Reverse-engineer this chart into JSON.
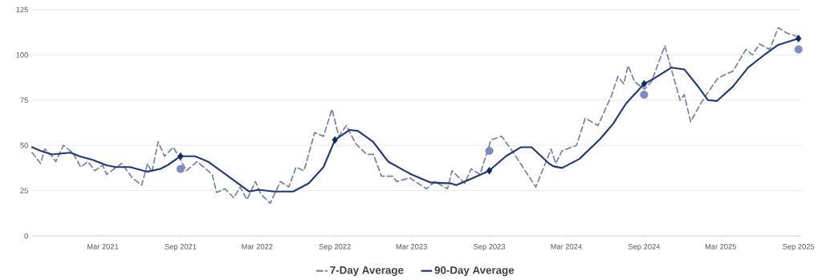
{
  "chart_data": {
    "type": "line",
    "xlim": [
      "2020-09-15",
      "2025-09-06"
    ],
    "xticks": [
      {
        "value": "2021-03-01",
        "label": "Mar 2021"
      },
      {
        "value": "2021-09-01",
        "label": "Sep 2021"
      },
      {
        "value": "2022-03-01",
        "label": "Mar 2022"
      },
      {
        "value": "2022-09-01",
        "label": "Sep 2022"
      },
      {
        "value": "2023-03-01",
        "label": "Mar 2023"
      },
      {
        "value": "2023-09-01",
        "label": "Sep 2023"
      },
      {
        "value": "2024-03-01",
        "label": "Mar 2024"
      },
      {
        "value": "2024-09-01",
        "label": "Sep 2024"
      },
      {
        "value": "2025-03-01",
        "label": "Mar 2025"
      },
      {
        "value": "2025-09-01",
        "label": "Sep 2025"
      }
    ],
    "ylim": [
      0,
      125
    ],
    "yticks": [
      0,
      25,
      50,
      75,
      100,
      125
    ],
    "grid": "y",
    "legend": "bottom",
    "series": [
      {
        "name": "7-Day Average",
        "color": "#7a80a6",
        "line_style": "dashed",
        "marker": "none",
        "x": [
          "2020-09-15",
          "2020-10-05",
          "2020-10-15",
          "2020-11-01",
          "2020-11-10",
          "2020-11-28",
          "2020-12-20",
          "2021-01-08",
          "2021-01-25",
          "2021-02-10",
          "2021-03-01",
          "2021-03-10",
          "2021-04-15",
          "2021-05-10",
          "2021-06-01",
          "2021-06-15",
          "2021-06-25",
          "2021-07-10",
          "2021-07-25",
          "2021-08-15",
          "2021-09-15",
          "2021-10-10",
          "2021-11-15",
          "2021-11-25",
          "2021-12-15",
          "2022-01-05",
          "2022-01-20",
          "2022-02-05",
          "2022-02-25",
          "2022-03-10",
          "2022-04-01",
          "2022-04-25",
          "2022-05-15",
          "2022-06-01",
          "2022-06-20",
          "2022-07-15",
          "2022-08-05",
          "2022-08-25",
          "2022-09-10",
          "2022-09-28",
          "2022-10-20",
          "2022-11-15",
          "2022-12-01",
          "2022-12-20",
          "2023-01-15",
          "2023-01-25",
          "2023-02-25",
          "2023-04-05",
          "2023-04-25",
          "2023-05-25",
          "2023-06-05",
          "2023-07-05",
          "2023-07-20",
          "2023-08-10",
          "2023-09-05",
          "2023-09-30",
          "2023-10-25",
          "2023-12-20",
          "2024-01-25",
          "2024-02-05",
          "2024-02-20",
          "2024-03-25",
          "2024-04-15",
          "2024-05-15",
          "2024-06-15",
          "2024-07-01",
          "2024-07-15",
          "2024-07-25",
          "2024-08-10",
          "2024-09-02",
          "2024-09-18",
          "2024-10-20",
          "2024-11-01",
          "2024-11-25",
          "2024-12-05",
          "2024-12-20",
          "2025-01-15",
          "2025-02-22",
          "2025-03-10",
          "2025-03-30",
          "2025-04-30",
          "2025-05-15",
          "2025-06-01",
          "2025-06-25",
          "2025-07-15",
          "2025-08-05",
          "2025-09-01"
        ],
        "values": [
          46,
          40,
          48,
          44,
          41,
          50,
          46,
          38,
          41,
          36,
          39,
          34,
          40,
          32,
          28,
          40,
          35,
          52,
          44,
          49,
          36,
          41,
          34,
          24,
          26,
          21,
          27,
          20,
          30,
          23,
          18,
          30,
          27,
          38,
          36,
          57,
          55,
          70,
          55,
          61,
          51,
          45,
          45,
          33,
          33,
          30,
          32,
          26,
          30,
          26,
          36,
          29,
          37,
          34,
          53,
          55,
          47,
          27,
          48,
          40,
          47,
          50,
          65,
          61,
          77,
          88,
          84,
          94,
          85,
          81,
          85,
          105,
          95,
          75,
          78,
          63,
          74,
          87,
          89,
          91,
          103,
          100,
          106,
          103,
          115,
          112,
          110
        ]
      },
      {
        "name": "90-Day Average",
        "color": "#1f3a7a",
        "line_style": "solid",
        "marker": "none",
        "x": [
          "2020-09-15",
          "2020-10-05",
          "2020-11-01",
          "2020-12-15",
          "2021-01-05",
          "2021-02-05",
          "2021-03-10",
          "2021-04-01",
          "2021-05-05",
          "2021-06-05",
          "2021-06-15",
          "2021-07-15",
          "2021-08-01",
          "2021-09-01",
          "2021-10-05",
          "2021-11-05",
          "2021-12-05",
          "2022-01-15",
          "2022-02-10",
          "2022-03-05",
          "2022-04-10",
          "2022-05-25",
          "2022-07-01",
          "2022-08-05",
          "2022-09-01",
          "2022-10-05",
          "2022-10-25",
          "2022-11-30",
          "2023-01-05",
          "2023-02-28",
          "2023-04-15",
          "2023-06-01",
          "2023-06-15",
          "2023-07-25",
          "2023-09-01",
          "2023-10-10",
          "2023-11-15",
          "2023-12-10",
          "2024-01-20",
          "2024-01-30",
          "2024-02-20",
          "2024-04-01",
          "2024-05-20",
          "2024-06-20",
          "2024-07-20",
          "2024-09-01",
          "2024-09-25",
          "2024-11-05",
          "2024-12-05",
          "2025-01-05",
          "2025-01-30",
          "2025-02-20",
          "2025-03-30",
          "2025-05-05",
          "2025-06-15",
          "2025-07-15",
          "2025-09-01"
        ],
        "values": [
          49,
          47,
          45,
          46,
          44,
          42,
          39,
          38,
          38,
          36,
          35.5,
          37,
          39,
          44,
          44,
          41,
          36,
          29,
          24.5,
          25.5,
          24.5,
          24.5,
          29,
          38,
          53,
          58.5,
          58,
          52,
          41,
          34,
          29.5,
          29,
          28,
          32,
          36,
          44,
          49,
          49,
          40,
          38.5,
          37.5,
          42.5,
          53.5,
          62,
          73,
          84,
          87,
          93,
          92,
          83,
          75,
          74.5,
          82.5,
          93,
          100.5,
          105.5,
          109
        ]
      },
      {
        "type": "scatter",
        "color": "#0d2a66",
        "marker": "diamond",
        "x": [
          "2021-09-01",
          "2022-09-01",
          "2023-09-01",
          "2024-09-01",
          "2025-09-01"
        ],
        "values": [
          44,
          53,
          36,
          84,
          109
        ]
      },
      {
        "type": "scatter",
        "color": "#7b8cc4",
        "marker": "circle",
        "x": [
          "2021-09-01",
          "2023-09-01",
          "2024-09-01",
          "2025-09-01"
        ],
        "values": [
          37,
          47,
          78,
          103
        ]
      }
    ]
  }
}
